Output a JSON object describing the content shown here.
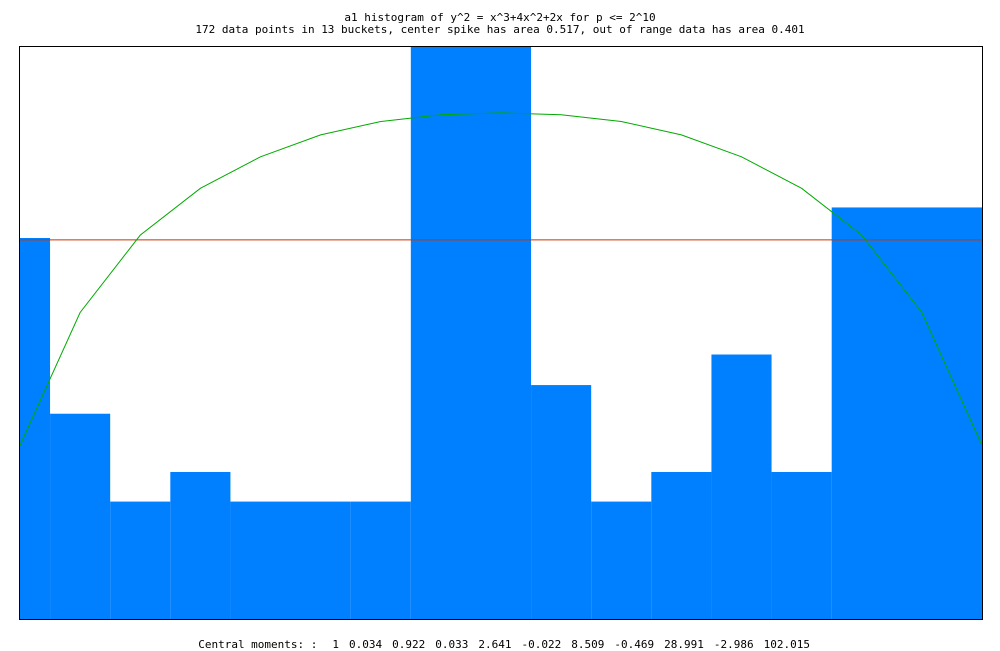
{
  "chart_data": {
    "type": "bar",
    "title": "a1 histogram of y^2 = x^3+4x^2+2x for p <= 2^10",
    "subtitle": "172 data points in 13 buckets, center spike has area 0.517, out of range data has area 0.401",
    "x_range": [
      -2,
      2
    ],
    "ylim": [
      0,
      0.6
    ],
    "bars": [
      {
        "x0": -2.0,
        "x1": -1.875,
        "value": 0.4
      },
      {
        "x0": -1.875,
        "x1": -1.625,
        "value": 0.216
      },
      {
        "x0": -1.625,
        "x1": -1.375,
        "value": 0.124
      },
      {
        "x0": -1.375,
        "x1": -1.125,
        "value": 0.155
      },
      {
        "x0": -1.125,
        "x1": -0.625,
        "value": 0.124
      },
      {
        "x0": -0.625,
        "x1": -0.375,
        "value": 0.124
      },
      {
        "x0": -0.375,
        "x1": 0.125,
        "value": 0.6
      },
      {
        "x0": 0.125,
        "x1": 0.375,
        "value": 0.246
      },
      {
        "x0": 0.375,
        "x1": 0.625,
        "value": 0.124
      },
      {
        "x0": 0.625,
        "x1": 0.875,
        "value": 0.155
      },
      {
        "x0": 0.875,
        "x1": 1.125,
        "value": 0.278
      },
      {
        "x0": 1.125,
        "x1": 1.375,
        "value": 0.155
      },
      {
        "x0": 1.375,
        "x1": 2.0,
        "value": 0.432
      }
    ],
    "reference_line": {
      "y": 0.398,
      "color": "#cc3300"
    },
    "semicircle_curve": {
      "color": "#00aa00",
      "points": [
        [
          -2.0,
          0.183
        ],
        [
          -1.75,
          0.322
        ],
        [
          -1.5,
          0.403
        ],
        [
          -1.25,
          0.452
        ],
        [
          -1.0,
          0.485
        ],
        [
          -0.75,
          0.508
        ],
        [
          -0.5,
          0.522
        ],
        [
          -0.25,
          0.529
        ],
        [
          0.0,
          0.531
        ],
        [
          0.25,
          0.529
        ],
        [
          0.5,
          0.522
        ],
        [
          0.75,
          0.508
        ],
        [
          1.0,
          0.485
        ],
        [
          1.25,
          0.452
        ],
        [
          1.5,
          0.403
        ],
        [
          1.75,
          0.322
        ],
        [
          2.0,
          0.183
        ]
      ]
    },
    "bar_color": "#0080ff",
    "grid": false,
    "legend": "none"
  },
  "footer": {
    "label": "Central moments: :",
    "values": [
      "1",
      "0.034",
      "0.922",
      "0.033",
      "2.641",
      "-0.022",
      "8.509",
      "-0.469",
      "28.991",
      "-2.986",
      "102.015"
    ]
  }
}
